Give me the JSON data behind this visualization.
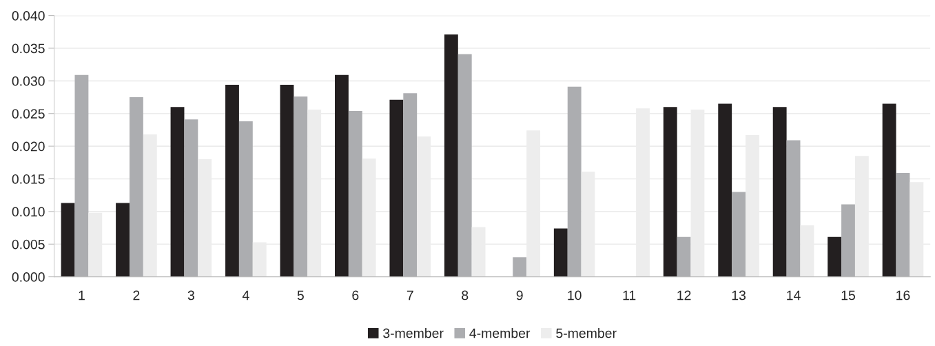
{
  "chart_data": {
    "type": "bar",
    "categories": [
      "1",
      "2",
      "3",
      "4",
      "5",
      "6",
      "7",
      "8",
      "9",
      "10",
      "11",
      "12",
      "13",
      "14",
      "15",
      "16"
    ],
    "series": [
      {
        "name": "3-member",
        "color": "#231f20",
        "values": [
          0.0113,
          0.0113,
          0.026,
          0.0294,
          0.0294,
          0.0309,
          0.0271,
          0.0371,
          0,
          0.0074,
          0,
          0.026,
          0.0265,
          0.026,
          0.0061,
          0.0265
        ]
      },
      {
        "name": "4-member",
        "color": "#acadb0",
        "values": [
          0.0309,
          0.0275,
          0.0241,
          0.0238,
          0.0276,
          0.0254,
          0.0281,
          0.0341,
          0.003,
          0.0291,
          0,
          0.0061,
          0.013,
          0.0209,
          0.0111,
          0.0159
        ]
      },
      {
        "name": "5-member",
        "color": "#ededed",
        "values": [
          0.0098,
          0.0218,
          0.018,
          0.0053,
          0.0256,
          0.0181,
          0.0215,
          0.0076,
          0.0224,
          0.0161,
          0.0258,
          0.0256,
          0.0217,
          0.0079,
          0.0185,
          0.0145
        ]
      }
    ],
    "ylim": [
      0,
      0.04
    ],
    "yticks": [
      {
        "value": 0,
        "label": "0.000"
      },
      {
        "value": 0.005,
        "label": "0.005"
      },
      {
        "value": 0.01,
        "label": "0.010"
      },
      {
        "value": 0.015,
        "label": "0.015"
      },
      {
        "value": 0.02,
        "label": "0.020"
      },
      {
        "value": 0.025,
        "label": "0.025"
      },
      {
        "value": 0.03,
        "label": "0.030"
      },
      {
        "value": 0.035,
        "label": "0.035"
      },
      {
        "value": 0.04,
        "label": "0.040"
      }
    ],
    "grid": "y",
    "legend": "bottom"
  }
}
